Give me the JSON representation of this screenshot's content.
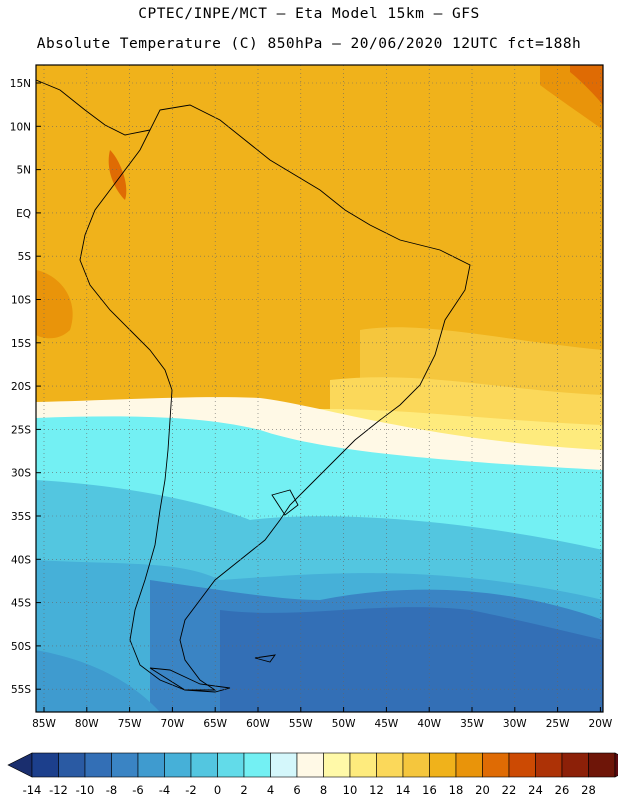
{
  "header": {
    "line1": "CPTEC/INPE/MCT –  Eta Model 15km – GFS",
    "line2": "Absolute Temperature (C) 850hPa – 20/06/2020 12UTC fct=188h"
  },
  "map": {
    "lat_labels": [
      "15N",
      "10N",
      "5N",
      "EQ",
      "5S",
      "10S",
      "15S",
      "20S",
      "25S",
      "30S",
      "35S",
      "40S",
      "45S",
      "50S",
      "55S"
    ],
    "lon_labels": [
      "85W",
      "80W",
      "75W",
      "70W",
      "65W",
      "60W",
      "55W",
      "50W",
      "45W",
      "40W",
      "35W",
      "30W",
      "25W",
      "20W"
    ]
  },
  "colorbar": {
    "labels": [
      "-14",
      "-12",
      "-10",
      "-8",
      "-6",
      "-4",
      "-2",
      "0",
      "2",
      "4",
      "6",
      "8",
      "10",
      "12",
      "14",
      "16",
      "18",
      "20",
      "22",
      "24",
      "26",
      "28"
    ],
    "colors": [
      "#1c3f8c",
      "#2a5aa3",
      "#336fb6",
      "#3a84c4",
      "#3f9bcf",
      "#46b0d8",
      "#53c6e0",
      "#62dbe9",
      "#73f0f3",
      "#d4f7fb",
      "#fff9e6",
      "#fff9a8",
      "#feeb7d",
      "#fbd85a",
      "#f5c63d",
      "#f0b21b",
      "#e9940a",
      "#df6b04",
      "#cc4a03",
      "#ad3206",
      "#8c2008",
      "#6e1508"
    ],
    "left_arrow_color": "#1a2e6e",
    "right_arrow_color": "#5a0a10"
  }
}
